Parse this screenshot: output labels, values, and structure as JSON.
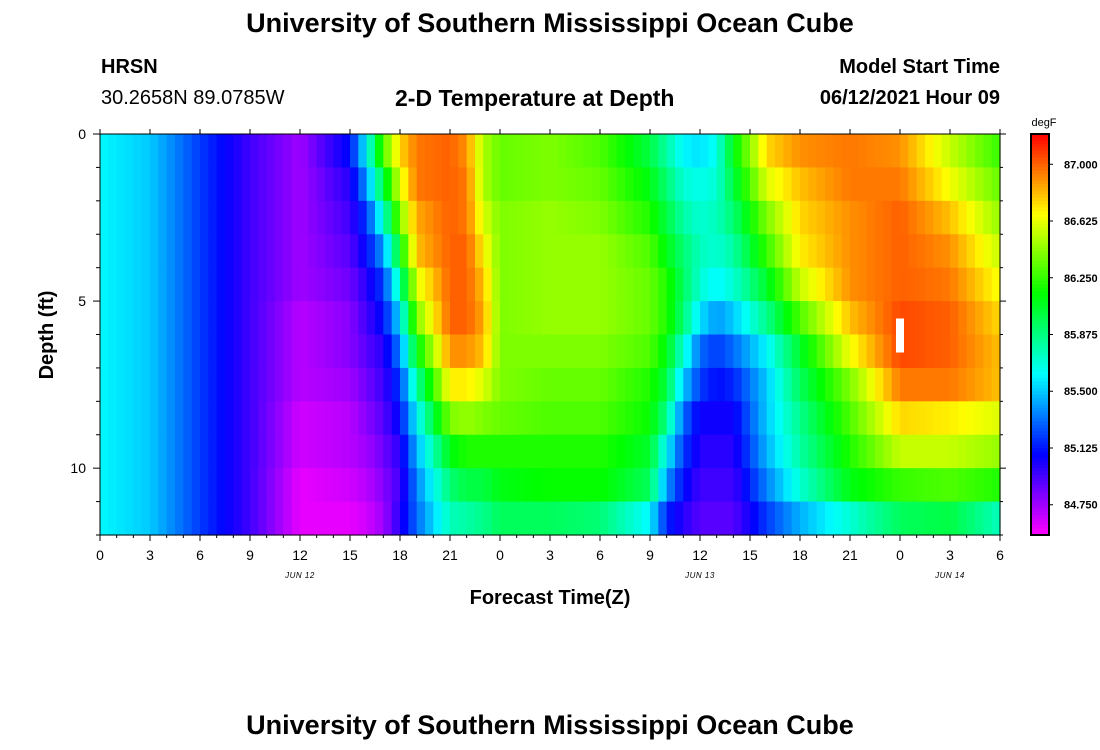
{
  "header": {
    "title": "University of Southern Mississippi Ocean Cube",
    "station": "HRSN",
    "coords": "30.2658N  89.0785W",
    "plot_title": "2-D Temperature at Depth",
    "model_label": "Model Start Time",
    "model_time": "06/12/2021 Hour 09"
  },
  "footer": {
    "title": "University of Southern Mississippi Ocean Cube"
  },
  "chart_data": {
    "type": "heatmap",
    "title": "2-D Temperature at Depth",
    "xlabel": "Forecast Time(Z)",
    "ylabel": "Depth (ft)",
    "x_ticks": [
      "0",
      "3",
      "6",
      "9",
      "12",
      "15",
      "18",
      "21",
      "0",
      "3",
      "6",
      "9",
      "12",
      "15",
      "18",
      "21",
      "0",
      "3",
      "6"
    ],
    "x_tick_hours": [
      0,
      3,
      6,
      9,
      12,
      15,
      18,
      21,
      24,
      27,
      30,
      33,
      36,
      39,
      42,
      45,
      48,
      51,
      54
    ],
    "date_labels": [
      {
        "label": "JUN 12",
        "hour": 12
      },
      {
        "label": "JUN 13",
        "hour": 36
      },
      {
        "label": "JUN 14",
        "hour": 51
      }
    ],
    "x_range_hours": [
      0,
      54
    ],
    "y_ticks": [
      0,
      5,
      10
    ],
    "y_range_ft": [
      0,
      12
    ],
    "colorbar": {
      "unit": "degF",
      "ticks": [
        "87.000",
        "86.625",
        "86.250",
        "85.875",
        "85.500",
        "85.125",
        "84.750"
      ],
      "tick_values": [
        87.0,
        86.625,
        86.25,
        85.875,
        85.5,
        85.125,
        84.75
      ],
      "range": [
        84.55,
        87.2
      ]
    },
    "marker": {
      "hour": 48,
      "depth_ft": 6
    },
    "keyframes_hours": [
      0,
      3,
      6,
      9,
      12,
      15,
      16,
      17,
      18,
      19,
      21,
      22,
      23,
      24,
      27,
      30,
      33,
      34,
      35,
      36,
      37,
      38,
      40,
      42,
      45,
      48,
      51,
      54
    ],
    "keyframe_depth_bins": 12,
    "keyframes": [
      [
        85.6,
        85.6,
        85.6,
        85.6,
        85.6,
        85.6,
        85.6,
        85.6,
        85.6,
        85.6,
        85.6,
        85.6
      ],
      [
        85.5,
        85.5,
        85.5,
        85.5,
        85.5,
        85.5,
        85.5,
        85.5,
        85.5,
        85.5,
        85.5,
        85.5
      ],
      [
        85.2,
        85.2,
        85.2,
        85.2,
        85.2,
        85.2,
        85.2,
        85.2,
        85.2,
        85.2,
        85.2,
        85.2
      ],
      [
        84.95,
        84.95,
        84.95,
        84.95,
        84.95,
        84.95,
        84.95,
        84.95,
        84.95,
        84.95,
        84.95,
        84.95
      ],
      [
        84.75,
        84.75,
        84.75,
        84.75,
        84.75,
        84.7,
        84.7,
        84.7,
        84.65,
        84.65,
        84.6,
        84.6
      ],
      [
        85.1,
        85.0,
        84.95,
        84.9,
        84.85,
        84.8,
        84.8,
        84.75,
        84.7,
        84.7,
        84.65,
        84.6
      ],
      [
        85.6,
        85.4,
        85.2,
        85.1,
        85.0,
        84.95,
        84.9,
        84.85,
        84.8,
        84.75,
        84.7,
        84.65
      ],
      [
        86.3,
        86.0,
        85.7,
        85.4,
        85.2,
        85.1,
        85.0,
        84.95,
        84.9,
        84.85,
        84.8,
        84.75
      ],
      [
        86.75,
        86.6,
        86.4,
        86.1,
        85.8,
        85.55,
        85.35,
        85.2,
        85.1,
        85.0,
        84.95,
        85.0
      ],
      [
        86.95,
        86.95,
        86.85,
        86.8,
        86.6,
        86.4,
        86.1,
        85.8,
        85.6,
        85.45,
        85.35,
        85.3
      ],
      [
        87.0,
        87.0,
        87.0,
        87.0,
        87.0,
        87.0,
        86.9,
        86.7,
        86.4,
        86.1,
        85.9,
        85.75
      ],
      [
        86.9,
        86.95,
        86.95,
        87.0,
        87.0,
        87.0,
        86.9,
        86.7,
        86.45,
        86.2,
        86.0,
        85.8
      ],
      [
        86.5,
        86.5,
        86.6,
        86.7,
        86.8,
        86.85,
        86.8,
        86.6,
        86.4,
        86.2,
        86.0,
        85.85
      ],
      [
        86.35,
        86.35,
        86.4,
        86.4,
        86.4,
        86.4,
        86.4,
        86.4,
        86.35,
        86.2,
        86.1,
        85.95
      ],
      [
        86.4,
        86.4,
        86.45,
        86.45,
        86.45,
        86.45,
        86.4,
        86.35,
        86.3,
        86.2,
        86.15,
        85.95
      ],
      [
        86.3,
        86.35,
        86.4,
        86.45,
        86.45,
        86.45,
        86.4,
        86.35,
        86.3,
        86.2,
        86.15,
        85.9
      ],
      [
        86.0,
        86.1,
        86.2,
        86.3,
        86.35,
        86.35,
        86.3,
        86.2,
        86.15,
        86.05,
        85.95,
        85.6
      ],
      [
        85.8,
        85.9,
        86.0,
        86.1,
        86.2,
        86.2,
        86.1,
        86.0,
        85.85,
        85.6,
        85.4,
        85.15
      ],
      [
        85.6,
        85.7,
        85.8,
        85.9,
        85.95,
        85.9,
        85.7,
        85.5,
        85.3,
        85.2,
        85.1,
        85.0
      ],
      [
        85.55,
        85.65,
        85.7,
        85.75,
        85.7,
        85.55,
        85.3,
        85.2,
        85.05,
        85.0,
        84.95,
        84.9
      ],
      [
        85.65,
        85.7,
        85.75,
        85.7,
        85.6,
        85.4,
        85.2,
        85.1,
        85.05,
        85.0,
        84.95,
        84.9
      ],
      [
        86.1,
        86.0,
        85.9,
        85.8,
        85.7,
        85.5,
        85.3,
        85.15,
        85.05,
        85.0,
        84.95,
        84.9
      ],
      [
        86.75,
        86.6,
        86.4,
        86.25,
        86.05,
        85.85,
        85.6,
        85.5,
        85.5,
        85.45,
        85.35,
        85.2
      ],
      [
        86.9,
        86.8,
        86.75,
        86.7,
        86.55,
        86.3,
        86.05,
        85.95,
        85.85,
        85.8,
        85.7,
        85.45
      ],
      [
        86.95,
        86.95,
        86.9,
        86.9,
        86.9,
        86.8,
        86.65,
        86.4,
        86.3,
        86.2,
        86.1,
        85.7
      ],
      [
        86.9,
        86.95,
        87.0,
        87.0,
        87.0,
        87.05,
        87.05,
        86.95,
        86.75,
        86.55,
        86.25,
        85.95
      ],
      [
        86.55,
        86.65,
        86.8,
        86.9,
        86.95,
        87.0,
        87.0,
        86.95,
        86.7,
        86.55,
        86.3,
        86.0
      ],
      [
        86.25,
        86.35,
        86.45,
        86.55,
        86.65,
        86.75,
        86.8,
        86.8,
        86.6,
        86.45,
        86.2,
        85.75
      ]
    ]
  }
}
